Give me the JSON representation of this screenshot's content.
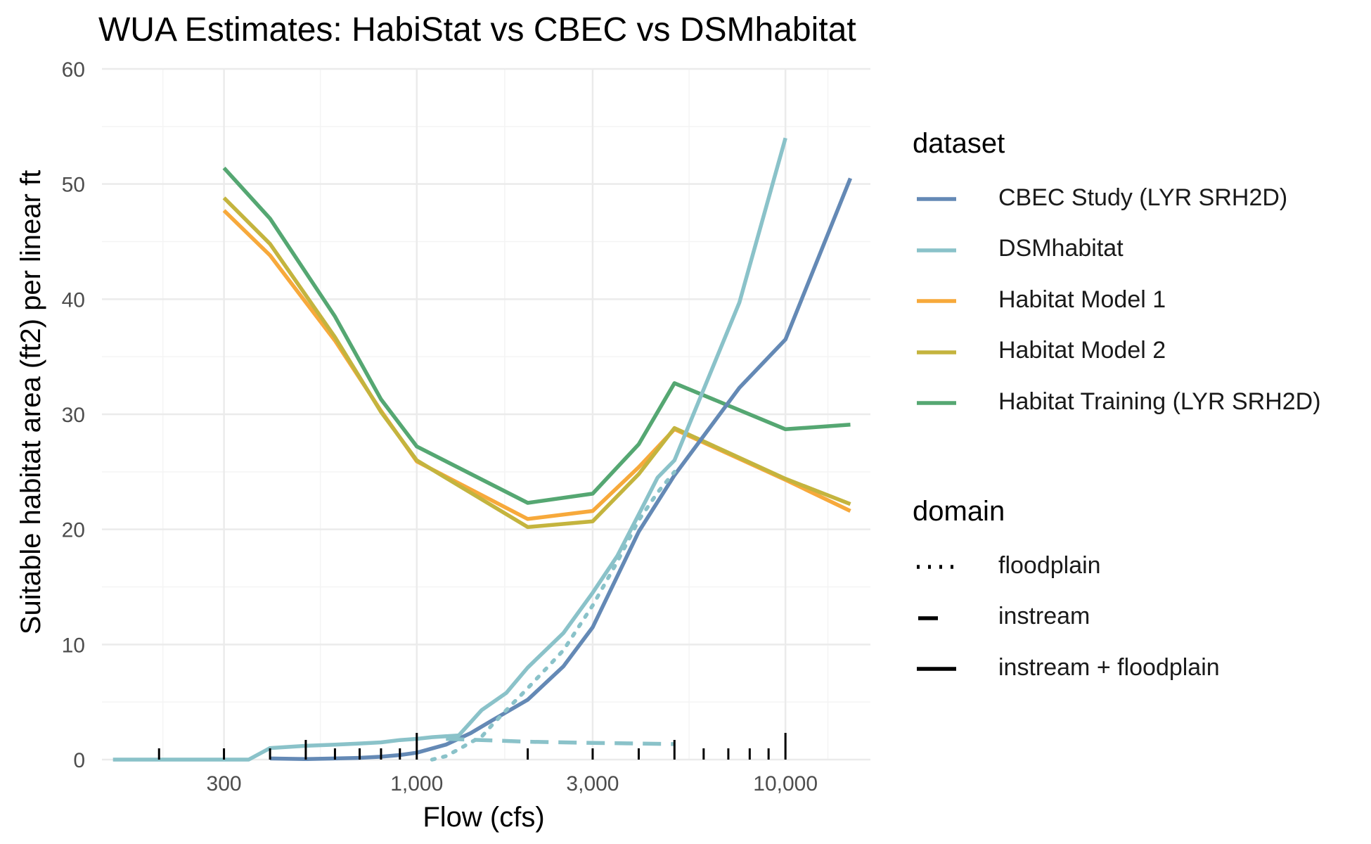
{
  "chart_data": {
    "type": "line",
    "title": "WUA Estimates: HabiStat vs CBEC vs DSMhabitat",
    "xlabel": "Flow (cfs)",
    "ylabel": "Suitable habitat area (ft2) per linear ft",
    "x_scale": "log10",
    "xlim": [
      140,
      17000
    ],
    "ylim": [
      0,
      60
    ],
    "x_ticks": [
      300,
      1000,
      3000,
      10000
    ],
    "x_tick_labels": [
      "300",
      "1,000",
      "3,000",
      "10,000"
    ],
    "y_ticks": [
      0,
      10,
      20,
      30,
      40,
      50,
      60
    ],
    "y_tick_labels": [
      "0",
      "10",
      "20",
      "30",
      "40",
      "50",
      "60"
    ],
    "grid": true,
    "legend_position": "right",
    "legends": [
      {
        "title": "dataset",
        "entries": [
          {
            "label": "CBEC Study (LYR SRH2D)",
            "color": "#6489B5"
          },
          {
            "label": "DSMhabitat",
            "color": "#8AC2C9"
          },
          {
            "label": "Habitat Model 1",
            "color": "#F7A93B"
          },
          {
            "label": "Habitat Model 2",
            "color": "#C4B43E"
          },
          {
            "label": "Habitat Training (LYR SRH2D)",
            "color": "#55A772"
          }
        ]
      },
      {
        "title": "domain",
        "entries": [
          {
            "label": "floodplain",
            "linetype": "dotted"
          },
          {
            "label": "instream",
            "linetype": "dashed"
          },
          {
            "label": "instream + floodplain",
            "linetype": "solid"
          }
        ]
      }
    ],
    "series": [
      {
        "dataset": "Habitat Training (LYR SRH2D)",
        "domain": "instream + floodplain",
        "color": "#55A772",
        "linetype": "solid",
        "x": [
          300,
          400,
          600,
          800,
          1000,
          2000,
          3000,
          4000,
          5000,
          10000,
          15000
        ],
        "y": [
          51.4,
          47,
          38.5,
          31.3,
          27.2,
          22.3,
          23.1,
          27.4,
          32.7,
          28.7,
          29.1
        ]
      },
      {
        "dataset": "Habitat Model 1",
        "domain": "instream + floodplain",
        "color": "#F7A93B",
        "linetype": "solid",
        "x": [
          300,
          400,
          600,
          800,
          1000,
          2000,
          3000,
          4000,
          5000,
          10000,
          15000
        ],
        "y": [
          47.7,
          43.8,
          36.4,
          30.3,
          25.9,
          20.9,
          21.6,
          25.4,
          28.7,
          24.3,
          21.6
        ]
      },
      {
        "dataset": "Habitat Model 2",
        "domain": "instream + floodplain",
        "color": "#C4B43E",
        "linetype": "solid",
        "x": [
          300,
          400,
          600,
          800,
          1000,
          2000,
          3000,
          4000,
          5000,
          10000,
          15000
        ],
        "y": [
          48.8,
          44.8,
          36.7,
          30.2,
          26,
          20.2,
          20.7,
          24.8,
          28.8,
          24.4,
          22.2
        ]
      },
      {
        "dataset": "CBEC Study (LYR SRH2D)",
        "domain": "instream + floodplain",
        "color": "#6489B5",
        "linetype": "solid",
        "x": [
          400,
          500,
          600,
          700,
          800,
          900,
          1000,
          1200,
          1400,
          1600,
          2000,
          2500,
          3000,
          4000,
          5000,
          7500,
          10000,
          15000
        ],
        "y": [
          0.1,
          0.05,
          0.1,
          0.15,
          0.25,
          0.4,
          0.6,
          1.3,
          2.3,
          3.4,
          5.2,
          8.1,
          11.5,
          19.8,
          24.7,
          32.3,
          36.5,
          50.5
        ]
      },
      {
        "dataset": "DSMhabitat",
        "domain": "instream + floodplain",
        "color": "#8AC2C9",
        "linetype": "solid",
        "x": [
          150,
          200,
          250,
          300,
          350,
          400,
          500,
          600,
          700,
          800,
          900,
          1000,
          1100,
          1300,
          1500,
          1750,
          2000,
          2500,
          3000,
          3500,
          4000,
          4500,
          5000,
          7500,
          10000
        ],
        "y": [
          0,
          0,
          0,
          0,
          0,
          1,
          1.2,
          1.3,
          1.4,
          1.5,
          1.7,
          1.8,
          1.95,
          2.1,
          4.3,
          5.8,
          8,
          11,
          14.5,
          17.7,
          21.3,
          24.5,
          26,
          39.7,
          54
        ]
      },
      {
        "dataset": "DSMhabitat",
        "domain": "floodplain",
        "color": "#8AC2C9",
        "linetype": "dotted",
        "x": [
          1100,
          1200,
          1300,
          1400,
          1500,
          1600,
          1750,
          2000,
          2500,
          3000,
          3500,
          4000,
          4500,
          5000
        ],
        "y": [
          0,
          0.3,
          0.9,
          1.5,
          2,
          3,
          4.3,
          6.2,
          9.5,
          13.4,
          17.2,
          20.8,
          23.2,
          25
        ]
      },
      {
        "dataset": "DSMhabitat",
        "domain": "instream",
        "color": "#8AC2C9",
        "linetype": "dashed",
        "x": [
          1200,
          1500,
          2000,
          3000,
          4000,
          5000
        ],
        "y": [
          1.8,
          1.7,
          1.55,
          1.45,
          1.4,
          1.35
        ]
      }
    ],
    "rug_x": [
      200,
      300,
      400,
      500,
      600,
      700,
      800,
      900,
      1000,
      2000,
      3000,
      4000,
      5000,
      6000,
      7000,
      8000,
      9000,
      10000
    ]
  }
}
